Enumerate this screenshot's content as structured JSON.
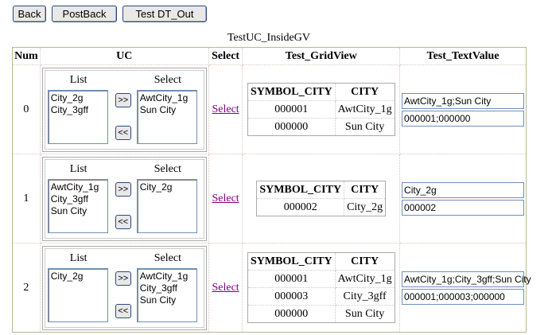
{
  "buttons": {
    "back": "Back",
    "postback": "PostBack",
    "test_dt_out": "Test DT_Out"
  },
  "grid": {
    "caption": "TestUC_InsideGV",
    "headers": [
      "Num",
      "UC",
      "Select",
      "Test_GridView",
      "Test_TextValue"
    ],
    "uc_labels": {
      "list": "List",
      "select": "Select",
      "add": ">>",
      "remove": "<<"
    },
    "select_link": "Select",
    "gv_headers": [
      "SYMBOL_CITY",
      "CITY"
    ],
    "rows": [
      {
        "num": "0",
        "list": [
          "City_2g",
          "City_3gff"
        ],
        "selected": [
          "AwtCity_1g",
          "Sun City"
        ],
        "gv": [
          [
            "000001",
            "AwtCity_1g"
          ],
          [
            "000000",
            "Sun City"
          ]
        ],
        "text1": "AwtCity_1g;Sun City",
        "text2": "000001;000000"
      },
      {
        "num": "1",
        "list": [
          "AwtCity_1g",
          "City_3gff",
          "Sun City"
        ],
        "selected": [
          "City_2g"
        ],
        "gv": [
          [
            "000002",
            "City_2g"
          ]
        ],
        "text1": "City_2g",
        "text2": "000002"
      },
      {
        "num": "2",
        "list": [
          "City_2g"
        ],
        "selected": [
          "AwtCity_1g",
          "City_3gff",
          "Sun City"
        ],
        "gv": [
          [
            "000001",
            "AwtCity_1g"
          ],
          [
            "000003",
            "City_3gff"
          ],
          [
            "000000",
            "Sun City"
          ]
        ],
        "text1": "AwtCity_1g;City_3gff;Sun City",
        "text2": "000001;000003;000000"
      }
    ]
  }
}
